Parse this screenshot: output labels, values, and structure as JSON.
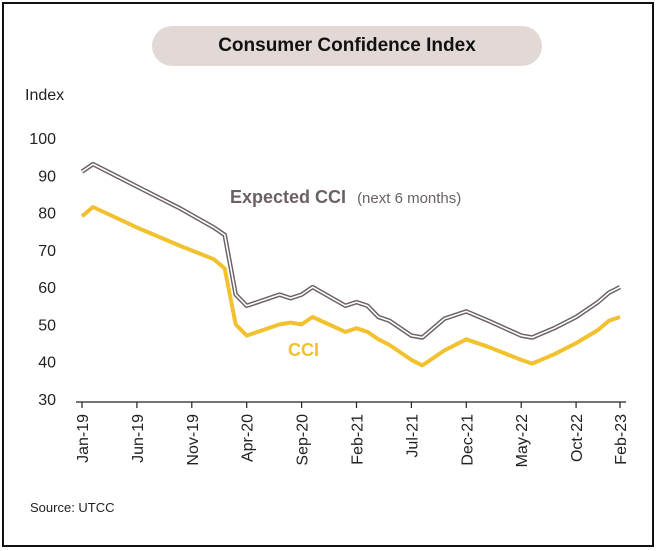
{
  "source": "Source: UTCC",
  "colors": {
    "expected": "#6b6163",
    "cci": "#f2c12e",
    "title_bg": "#e2d9d6"
  },
  "chart_data": {
    "type": "line",
    "title": "Consumer Confidence Index",
    "ylabel": "Index",
    "ylim": [
      30,
      100
    ],
    "yticks": [
      30,
      40,
      50,
      60,
      70,
      80,
      90,
      100
    ],
    "xlim": [
      "Jan-19",
      "Feb-23"
    ],
    "xtick_labels": [
      "Jan-19",
      "Jun-19",
      "Nov-19",
      "Apr-20",
      "Sep-20",
      "Feb-21",
      "Jul-21",
      "Dec-21",
      "May-22",
      "Oct-22",
      "Feb-23"
    ],
    "grid": false,
    "series": [
      {
        "name": "Expected CCI",
        "label_main": "Expected CCI",
        "label_sub": "(next 6 months)",
        "color": "#6b6163",
        "points": [
          [
            "Jan-19",
            91
          ],
          [
            "Feb-19",
            93
          ],
          [
            "Jun-19",
            87
          ],
          [
            "Oct-19",
            81
          ],
          [
            "Jan-20",
            76
          ],
          [
            "Feb-20",
            74
          ],
          [
            "Mar-20",
            58
          ],
          [
            "Apr-20",
            55
          ],
          [
            "Jul-20",
            58
          ],
          [
            "Aug-20",
            57
          ],
          [
            "Sep-20",
            58
          ],
          [
            "Oct-20",
            60
          ],
          [
            "Jan-21",
            55
          ],
          [
            "Feb-21",
            56
          ],
          [
            "Mar-21",
            55
          ],
          [
            "Apr-21",
            52
          ],
          [
            "May-21",
            51
          ],
          [
            "Jul-21",
            47
          ],
          [
            "Aug-21",
            46.5
          ],
          [
            "Oct-21",
            51.5
          ],
          [
            "Dec-21",
            53.5
          ],
          [
            "Feb-22",
            51
          ],
          [
            "May-22",
            47
          ],
          [
            "Jun-22",
            46.5
          ],
          [
            "Aug-22",
            49
          ],
          [
            "Oct-22",
            52
          ],
          [
            "Dec-22",
            56
          ],
          [
            "Jan-23",
            58.5
          ],
          [
            "Feb-23",
            60
          ]
        ]
      },
      {
        "name": "CCI",
        "label_main": "CCI",
        "color": "#f2c12e",
        "points": [
          [
            "Jan-19",
            79
          ],
          [
            "Feb-19",
            81.5
          ],
          [
            "Jun-19",
            76
          ],
          [
            "Oct-19",
            71
          ],
          [
            "Jan-20",
            67.5
          ],
          [
            "Feb-20",
            65
          ],
          [
            "Mar-20",
            50
          ],
          [
            "Apr-20",
            47
          ],
          [
            "Jul-20",
            50
          ],
          [
            "Aug-20",
            50.5
          ],
          [
            "Sep-20",
            50
          ],
          [
            "Oct-20",
            52
          ],
          [
            "Jan-21",
            48
          ],
          [
            "Feb-21",
            49
          ],
          [
            "Mar-21",
            48
          ],
          [
            "Apr-21",
            46
          ],
          [
            "May-21",
            44.5
          ],
          [
            "Jul-21",
            40.5
          ],
          [
            "Aug-21",
            39
          ],
          [
            "Oct-21",
            43
          ],
          [
            "Dec-21",
            46
          ],
          [
            "Feb-22",
            44
          ],
          [
            "May-22",
            40.5
          ],
          [
            "Jun-22",
            39.5
          ],
          [
            "Aug-22",
            42
          ],
          [
            "Oct-22",
            45
          ],
          [
            "Dec-22",
            48.5
          ],
          [
            "Jan-23",
            51
          ],
          [
            "Feb-23",
            52
          ]
        ]
      }
    ]
  }
}
